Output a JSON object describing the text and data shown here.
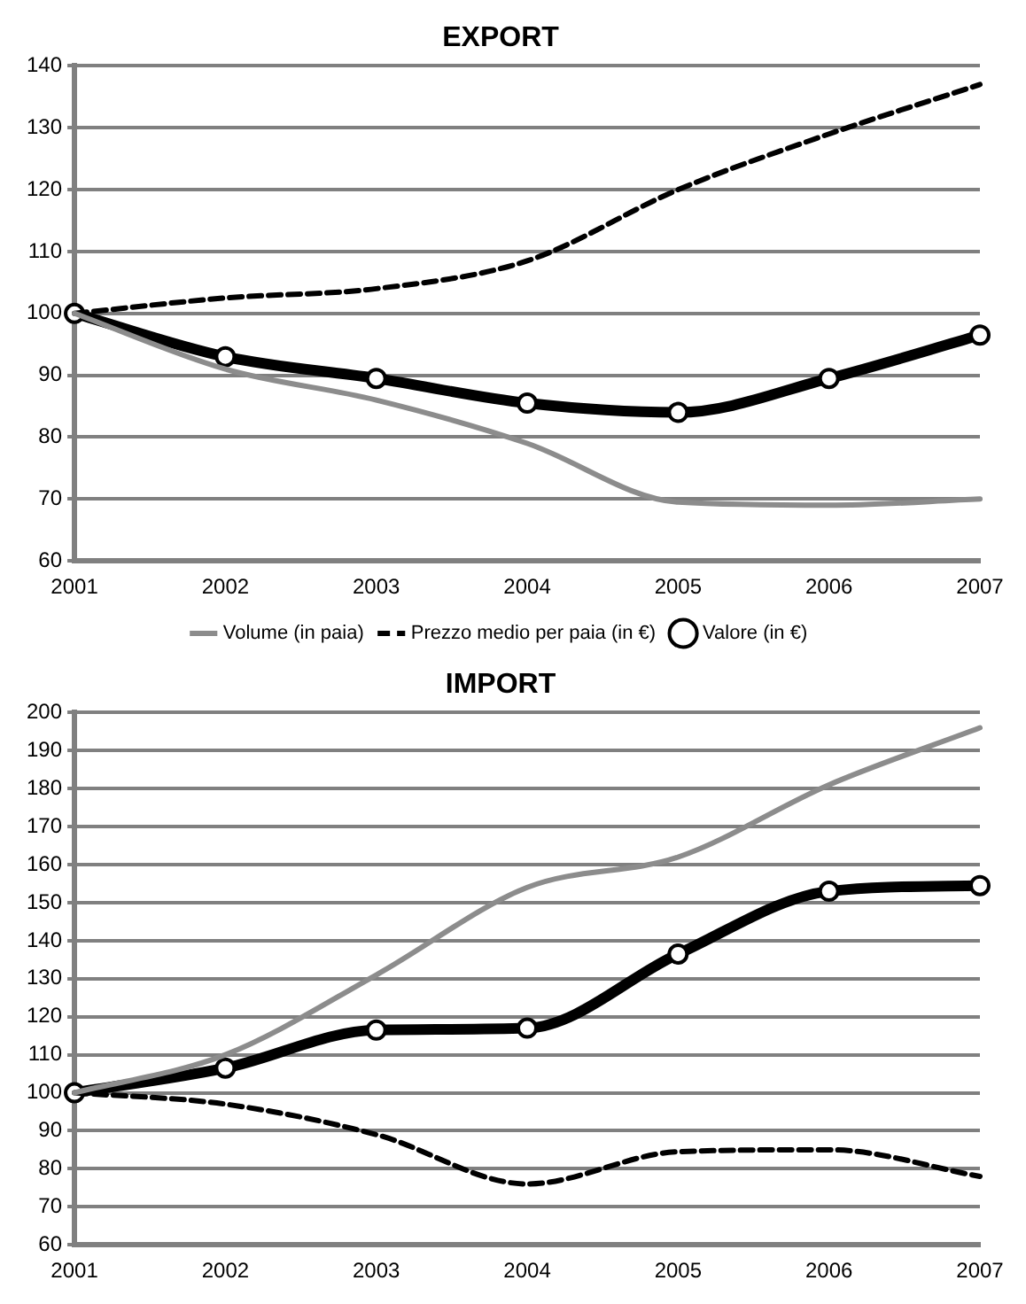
{
  "chart_data": [
    {
      "type": "line",
      "title": "EXPORT",
      "categories": [
        "2001",
        "2002",
        "2003",
        "2004",
        "2005",
        "2006",
        "2007"
      ],
      "ylim": [
        60,
        140
      ],
      "yticks": [
        60,
        70,
        80,
        90,
        100,
        110,
        120,
        130,
        140
      ],
      "grid": "y",
      "legend": "bottom",
      "series": [
        {
          "name": "Volume (in paia)",
          "color": "#8c8c8c",
          "line_style": "solid",
          "marker": "none",
          "values": [
            100,
            91,
            86,
            79,
            69.5,
            69,
            70
          ]
        },
        {
          "name": "Prezzo medio per paia (in €)",
          "color": "#000000",
          "line_style": "dashed",
          "marker": "none",
          "values": [
            100,
            102.5,
            104,
            108.5,
            120,
            129,
            137
          ]
        },
        {
          "name": "Valore (in €)",
          "color": "#000000",
          "line_style": "solid",
          "marker": "circle",
          "values": [
            100,
            93,
            89.5,
            85.5,
            84,
            89.5,
            96.5
          ]
        }
      ]
    },
    {
      "type": "line",
      "title": "IMPORT",
      "categories": [
        "2001",
        "2002",
        "2003",
        "2004",
        "2005",
        "2006",
        "2007"
      ],
      "ylim": [
        60,
        200
      ],
      "yticks": [
        60,
        70,
        80,
        90,
        100,
        110,
        120,
        130,
        140,
        150,
        160,
        170,
        180,
        190,
        200
      ],
      "grid": "y",
      "legend": false,
      "series": [
        {
          "color": "#8c8c8c",
          "line_style": "solid",
          "marker": "none",
          "values": [
            100,
            110,
            131,
            154,
            162,
            181,
            196
          ]
        },
        {
          "color": "#000000",
          "line_style": "dashed",
          "marker": "none",
          "values": [
            100,
            97,
            89,
            76,
            84.5,
            85,
            78
          ]
        },
        {
          "color": "#000000",
          "line_style": "solid",
          "marker": "circle",
          "values": [
            100,
            106.5,
            116.5,
            117,
            136.5,
            153,
            154.5
          ]
        }
      ]
    }
  ]
}
